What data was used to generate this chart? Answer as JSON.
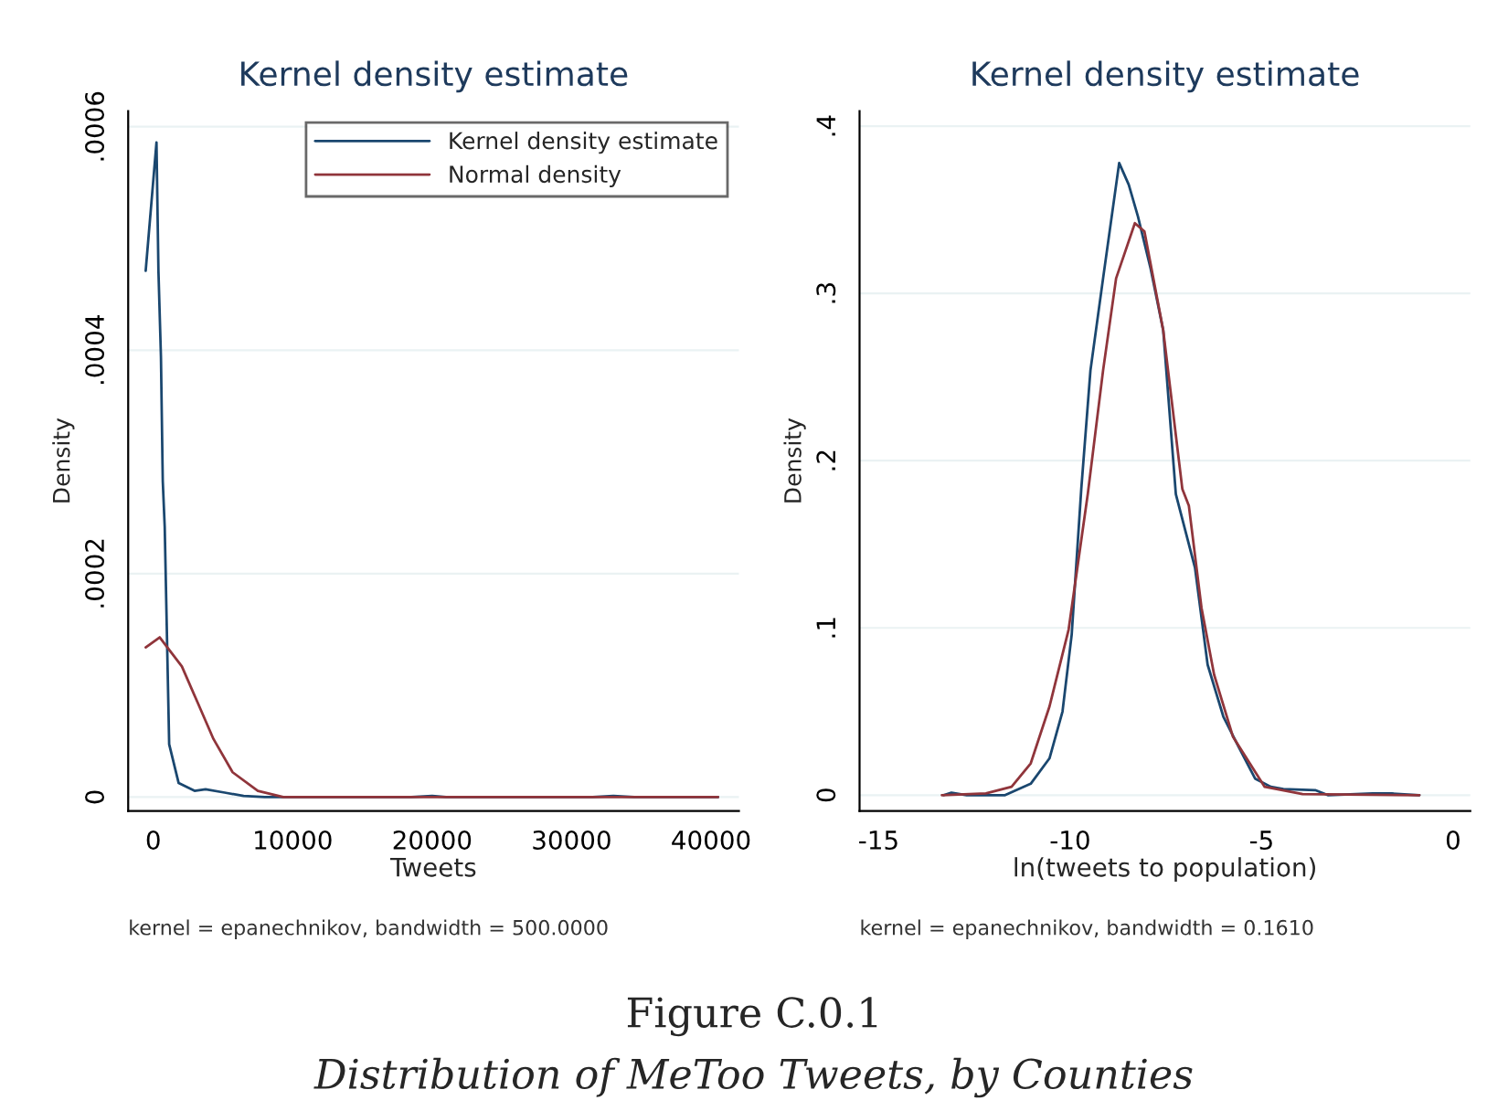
{
  "chart_data": [
    {
      "type": "line",
      "title": "Kernel density estimate",
      "xlabel": "Tweets",
      "ylabel": "Density",
      "xlim": [
        -1800,
        42000
      ],
      "ylim": [
        -1.25e-05,
        0.000614
      ],
      "xticks": [
        0,
        10000,
        20000,
        30000,
        40000
      ],
      "yticks": [
        0,
        {
          "value": 0.0002,
          "label": ".0002"
        },
        {
          "value": 0.0004,
          "label": ".0004"
        },
        {
          "value": 0.0006,
          "label": ".0006"
        }
      ],
      "grid": "y",
      "legend": "top right",
      "marker": "none",
      "line_style": "solid",
      "series": [
        {
          "name": "Kernel density estimate",
          "color": "#1a476f",
          "x": [
            -545,
            230,
            370,
            550,
            680,
            820,
            1140,
            1820,
            2960,
            3750,
            5120,
            6480,
            8000,
            10000,
            15000,
            18500,
            20000,
            21000,
            25000,
            31500,
            33000,
            34500,
            38000,
            40500
          ],
          "values": [
            0.000471,
            0.000586,
            0.000471,
            0.000394,
            0.000283,
            0.000242,
            4.72e-05,
            1.25e-05,
            5.6e-06,
            6.9e-06,
            4e-06,
            1e-06,
            0,
            0,
            0,
            0,
            1e-06,
            0,
            0,
            0,
            1e-06,
            0,
            0,
            0
          ]
        },
        {
          "name": "Normal density",
          "color": "#90353b",
          "x": [
            -545,
            460,
            2050,
            3190,
            4320,
            5690,
            7500,
            9320,
            20000,
            30000,
            40500
          ],
          "values": [
            0.000134,
            0.000143,
            0.000117,
            8.43e-05,
            5.19e-05,
            2.22e-05,
            5.6e-06,
            0,
            0,
            0,
            0
          ]
        }
      ],
      "annotations": [
        "kernel = epanechnikov, bandwidth = 500.0000",
        "Figure C.0.1",
        "Distribution of MeToo Tweets, by Counties"
      ]
    },
    {
      "type": "line",
      "title": "Kernel density estimate",
      "xlabel": "ln(tweets to population)",
      "ylabel": "Density",
      "xlim": [
        -15.5,
        0.45
      ],
      "ylim": [
        -0.0095,
        0.409
      ],
      "xticks": [
        -15,
        -10,
        -5,
        0
      ],
      "yticks": [
        0,
        {
          "value": 0.1,
          "label": ".1"
        },
        {
          "value": 0.2,
          "label": ".2"
        },
        {
          "value": 0.3,
          "label": ".3"
        },
        {
          "value": 0.4,
          "label": ".4"
        }
      ],
      "grid": "y",
      "marker": "none",
      "line_style": "solid",
      "series": [
        {
          "color": "#1a476f",
          "x": [
            -13.3,
            -13.1,
            -12.7,
            -11.7,
            -11.03,
            -10.54,
            -10.2,
            -9.96,
            -9.71,
            -9.47,
            -9.14,
            -8.72,
            -8.47,
            -8.23,
            -7.9,
            -7.57,
            -7.24,
            -6.74,
            -6.41,
            -6.0,
            -5.58,
            -5.17,
            -4.76,
            -4.43,
            -3.6,
            -3.27,
            -2.1,
            -1.6,
            -0.88
          ],
          "values": [
            0,
            0.0015,
            0,
            0,
            0.0068,
            0.022,
            0.05,
            0.096,
            0.183,
            0.254,
            0.309,
            0.378,
            0.365,
            0.346,
            0.315,
            0.278,
            0.18,
            0.136,
            0.078,
            0.047,
            0.028,
            0.0099,
            0.005,
            0.0037,
            0.003,
            0,
            0.001,
            0.001,
            0
          ]
        },
        {
          "color": "#90353b",
          "x": [
            -13.35,
            -12.2,
            -11.53,
            -11.03,
            -10.54,
            -10.04,
            -9.54,
            -9.14,
            -8.8,
            -8.31,
            -8.06,
            -7.57,
            -7.07,
            -6.9,
            -6.57,
            -6.24,
            -5.75,
            -4.92,
            -3.93,
            -0.88
          ],
          "values": [
            0,
            0.001,
            0.005,
            0.019,
            0.053,
            0.099,
            0.18,
            0.254,
            0.309,
            0.342,
            0.337,
            0.278,
            0.183,
            0.173,
            0.112,
            0.072,
            0.035,
            0.005,
            0.0006,
            0
          ]
        }
      ],
      "annotations": [
        "kernel = epanechnikov, bandwidth = 0.1610"
      ]
    }
  ]
}
